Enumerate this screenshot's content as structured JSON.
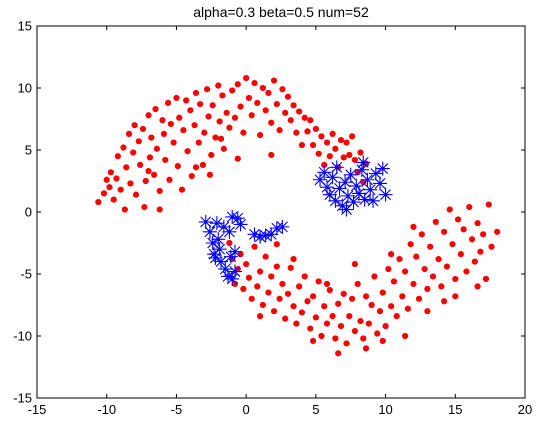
{
  "chart_data": {
    "type": "scatter",
    "title": "alpha=0.3 beta=0.5 num=52",
    "xlabel": "",
    "ylabel": "",
    "xlim": [
      -15,
      20
    ],
    "ylim": [
      -15,
      15
    ],
    "xticks": [
      "-15",
      "-10",
      "-5",
      "0",
      "5",
      "10",
      "15",
      "20"
    ],
    "yticks": [
      "15",
      "10",
      "5",
      "0",
      "-5",
      "-10",
      "-15"
    ],
    "grid": false,
    "series": [
      {
        "marker": "dot",
        "color": "#ff0000",
        "points": [
          [
            -10.6,
            0.8
          ],
          [
            -10.2,
            1.5
          ],
          [
            -10.0,
            2.6
          ],
          [
            -9.8,
            2.0
          ],
          [
            -9.7,
            3.2
          ],
          [
            -9.5,
            1.0
          ],
          [
            -9.3,
            2.7
          ],
          [
            -9.2,
            4.5
          ],
          [
            -9.0,
            1.8
          ],
          [
            -8.8,
            5.2
          ],
          [
            -8.7,
            0.2
          ],
          [
            -8.6,
            3.6
          ],
          [
            -8.4,
            6.3
          ],
          [
            -8.3,
            2.3
          ],
          [
            -8.1,
            4.8
          ],
          [
            -8.0,
            7.0
          ],
          [
            -7.9,
            1.4
          ],
          [
            -7.7,
            5.7
          ],
          [
            -7.6,
            3.8
          ],
          [
            -7.4,
            6.7
          ],
          [
            -7.3,
            0.4
          ],
          [
            -7.2,
            2.5
          ],
          [
            -7.0,
            7.8
          ],
          [
            -6.9,
            4.4
          ],
          [
            -6.8,
            6.0
          ],
          [
            -6.6,
            3.0
          ],
          [
            -6.5,
            8.3
          ],
          [
            -6.4,
            5.1
          ],
          [
            -6.2,
            1.7
          ],
          [
            -6.0,
            7.4
          ],
          [
            -5.9,
            6.3
          ],
          [
            -5.8,
            4.2
          ],
          [
            -5.6,
            8.8
          ],
          [
            -5.5,
            2.6
          ],
          [
            -5.4,
            7.1
          ],
          [
            -5.2,
            5.6
          ],
          [
            -5.0,
            9.2
          ],
          [
            -4.9,
            3.7
          ],
          [
            -4.8,
            7.6
          ],
          [
            -4.6,
            1.8
          ],
          [
            -4.5,
            6.6
          ],
          [
            -4.3,
            9.0
          ],
          [
            -4.2,
            4.9
          ],
          [
            -4.0,
            8.2
          ],
          [
            -3.9,
            2.9
          ],
          [
            -3.7,
            7.0
          ],
          [
            -3.6,
            9.6
          ],
          [
            -3.4,
            5.6
          ],
          [
            -3.3,
            8.7
          ],
          [
            -3.1,
            3.8
          ],
          [
            -3.0,
            6.4
          ],
          [
            -2.8,
            9.9
          ],
          [
            -2.7,
            7.7
          ],
          [
            -2.5,
            4.6
          ],
          [
            -2.4,
            8.6
          ],
          [
            -2.2,
            6.0
          ],
          [
            -2.0,
            10.2
          ],
          [
            -1.9,
            7.3
          ],
          [
            -1.7,
            9.4
          ],
          [
            -1.6,
            5.1
          ],
          [
            -1.4,
            8.0
          ],
          [
            -1.2,
            6.8
          ],
          [
            -1.0,
            9.8
          ],
          [
            -0.8,
            7.6
          ],
          [
            -0.6,
            10.3
          ],
          [
            -0.4,
            8.5
          ],
          [
            -0.2,
            6.4
          ],
          [
            0.0,
            10.8
          ],
          [
            0.2,
            9.2
          ],
          [
            0.4,
            7.8
          ],
          [
            0.6,
            10.4
          ],
          [
            0.8,
            8.8
          ],
          [
            1.0,
            6.2
          ],
          [
            1.2,
            10.0
          ],
          [
            1.4,
            8.2
          ],
          [
            1.6,
            9.6
          ],
          [
            1.8,
            7.2
          ],
          [
            2.0,
            10.6
          ],
          [
            2.2,
            8.7
          ],
          [
            2.4,
            6.6
          ],
          [
            2.6,
            9.9
          ],
          [
            2.8,
            8.0
          ],
          [
            3.0,
            9.3
          ],
          [
            3.2,
            7.4
          ],
          [
            3.4,
            8.6
          ],
          [
            3.6,
            6.4
          ],
          [
            3.8,
            8.1
          ],
          [
            4.0,
            5.4
          ],
          [
            4.2,
            7.6
          ],
          [
            4.4,
            6.5
          ],
          [
            4.6,
            7.4
          ],
          [
            4.8,
            5.4
          ],
          [
            5.0,
            6.7
          ],
          [
            5.2,
            4.7
          ],
          [
            5.4,
            6.1
          ],
          [
            5.6,
            3.8
          ],
          [
            5.8,
            5.6
          ],
          [
            6.0,
            4.5
          ],
          [
            6.2,
            6.3
          ],
          [
            6.4,
            5.1
          ],
          [
            6.6,
            3.6
          ],
          [
            6.8,
            5.8
          ],
          [
            7.0,
            4.4
          ],
          [
            7.2,
            5.6
          ],
          [
            7.4,
            4.6
          ],
          [
            7.6,
            6.1
          ],
          [
            7.8,
            4.2
          ],
          [
            8.0,
            3.2
          ],
          [
            8.2,
            4.8
          ],
          [
            8.4,
            2.4
          ],
          [
            8.6,
            3.9
          ],
          [
            1.8,
            4.6
          ],
          [
            -0.6,
            4.3
          ],
          [
            -3.6,
            3.6
          ],
          [
            -7.0,
            3.3
          ],
          [
            -6.2,
            0.2
          ],
          [
            -1.8,
            5.9
          ],
          [
            -2.6,
            3.0
          ],
          [
            -1.2,
            -2.5
          ],
          [
            -1.0,
            -3.8
          ],
          [
            -0.8,
            -5.8
          ],
          [
            -0.6,
            -4.6
          ],
          [
            -0.4,
            -3.4
          ],
          [
            -0.2,
            -6.2
          ],
          [
            0.0,
            -4.2
          ],
          [
            0.2,
            -5.3
          ],
          [
            0.4,
            -7.0
          ],
          [
            0.6,
            -2.8
          ],
          [
            0.8,
            -6.0
          ],
          [
            1.0,
            -4.8
          ],
          [
            1.2,
            -7.5
          ],
          [
            1.4,
            -3.6
          ],
          [
            1.6,
            -6.5
          ],
          [
            1.8,
            -5.2
          ],
          [
            2.0,
            -8.0
          ],
          [
            2.2,
            -4.4
          ],
          [
            2.4,
            -7.0
          ],
          [
            2.6,
            -5.8
          ],
          [
            2.8,
            -8.6
          ],
          [
            3.0,
            -6.6
          ],
          [
            3.2,
            -4.5
          ],
          [
            3.4,
            -7.6
          ],
          [
            3.6,
            -9.0
          ],
          [
            3.8,
            -6.0
          ],
          [
            4.0,
            -8.1
          ],
          [
            4.2,
            -5.2
          ],
          [
            4.4,
            -7.2
          ],
          [
            4.6,
            -9.4
          ],
          [
            4.8,
            -6.8
          ],
          [
            5.0,
            -8.5
          ],
          [
            5.2,
            -5.6
          ],
          [
            5.4,
            -10.0
          ],
          [
            5.6,
            -7.6
          ],
          [
            5.8,
            -9.0
          ],
          [
            6.0,
            -6.3
          ],
          [
            6.2,
            -8.4
          ],
          [
            6.4,
            -10.2
          ],
          [
            6.6,
            -7.4
          ],
          [
            6.8,
            -9.2
          ],
          [
            7.0,
            -6.6
          ],
          [
            7.2,
            -10.6
          ],
          [
            7.4,
            -8.4
          ],
          [
            7.6,
            -7.0
          ],
          [
            7.8,
            -9.6
          ],
          [
            8.0,
            -5.8
          ],
          [
            8.2,
            -8.8
          ],
          [
            8.4,
            -10.2
          ],
          [
            8.6,
            -6.8
          ],
          [
            8.8,
            -9.0
          ],
          [
            9.0,
            -7.5
          ],
          [
            9.2,
            -5.2
          ],
          [
            9.4,
            -9.8
          ],
          [
            9.6,
            -8.0
          ],
          [
            9.8,
            -6.5
          ],
          [
            10.0,
            -9.2
          ],
          [
            10.2,
            -4.6
          ],
          [
            10.4,
            -7.6
          ],
          [
            10.6,
            -5.6
          ],
          [
            10.8,
            -8.4
          ],
          [
            11.0,
            -3.8
          ],
          [
            11.2,
            -6.8
          ],
          [
            11.4,
            -4.8
          ],
          [
            11.6,
            -7.8
          ],
          [
            11.8,
            -2.6
          ],
          [
            12.0,
            -5.8
          ],
          [
            12.2,
            -3.6
          ],
          [
            12.4,
            -7.0
          ],
          [
            12.6,
            -1.8
          ],
          [
            12.8,
            -4.6
          ],
          [
            13.0,
            -6.2
          ],
          [
            13.2,
            -2.8
          ],
          [
            13.4,
            -5.2
          ],
          [
            13.6,
            -0.8
          ],
          [
            13.8,
            -3.8
          ],
          [
            14.0,
            -6.0
          ],
          [
            14.2,
            -1.6
          ],
          [
            14.4,
            -4.4
          ],
          [
            14.6,
            0.2
          ],
          [
            14.8,
            -2.6
          ],
          [
            15.0,
            -5.4
          ],
          [
            15.2,
            -0.6
          ],
          [
            15.4,
            -3.4
          ],
          [
            15.6,
            -1.4
          ],
          [
            15.8,
            -4.8
          ],
          [
            16.0,
            0.4
          ],
          [
            16.2,
            -2.2
          ],
          [
            16.4,
            -4.0
          ],
          [
            16.6,
            -0.9
          ],
          [
            16.8,
            -3.2
          ],
          [
            17.0,
            -1.8
          ],
          [
            17.2,
            -5.4
          ],
          [
            17.6,
            -2.8
          ],
          [
            18.0,
            -1.6
          ],
          [
            15.0,
            -6.8
          ],
          [
            5.8,
            -5.8
          ],
          [
            7.8,
            -4.2
          ],
          [
            3.4,
            -3.8
          ],
          [
            12.0,
            -1.2
          ],
          [
            10.4,
            -3.4
          ],
          [
            14.2,
            -7.2
          ],
          [
            4.8,
            -10.4
          ],
          [
            8.6,
            -11.0
          ],
          [
            6.6,
            -11.4
          ],
          [
            2.2,
            -2.6
          ],
          [
            1.0,
            -8.4
          ],
          [
            13.0,
            -8.0
          ],
          [
            16.6,
            -6.0
          ],
          [
            9.8,
            -10.4
          ],
          [
            11.4,
            -10.0
          ],
          [
            17.4,
            0.6
          ]
        ]
      },
      {
        "marker": "star",
        "color": "#0000ff",
        "points": [
          [
            5.3,
            2.6
          ],
          [
            5.6,
            3.2
          ],
          [
            5.8,
            2.0
          ],
          [
            6.0,
            1.4
          ],
          [
            6.2,
            2.8
          ],
          [
            6.4,
            0.9
          ],
          [
            6.5,
            3.6
          ],
          [
            6.7,
            1.9
          ],
          [
            6.9,
            0.5
          ],
          [
            7.1,
            2.4
          ],
          [
            7.3,
            1.3
          ],
          [
            7.5,
            3.0
          ],
          [
            7.7,
            0.8
          ],
          [
            7.9,
            2.1
          ],
          [
            8.1,
            1.5
          ],
          [
            8.3,
            3.4
          ],
          [
            8.5,
            1.0
          ],
          [
            8.7,
            2.6
          ],
          [
            8.9,
            1.8
          ],
          [
            9.1,
            0.9
          ],
          [
            9.3,
            3.1
          ],
          [
            9.6,
            2.3
          ],
          [
            9.8,
            3.5
          ],
          [
            10.0,
            1.4
          ],
          [
            8.4,
            4.0
          ],
          [
            7.2,
            0.2
          ],
          [
            -2.9,
            -0.8
          ],
          [
            -2.6,
            -1.6
          ],
          [
            -2.4,
            -2.5
          ],
          [
            -2.3,
            -3.4
          ],
          [
            -2.1,
            -0.9
          ],
          [
            -2.0,
            -2.2
          ],
          [
            -1.9,
            -3.0
          ],
          [
            -1.8,
            -4.0
          ],
          [
            -1.6,
            -1.2
          ],
          [
            -1.5,
            -4.6
          ],
          [
            -1.3,
            -5.2
          ],
          [
            -1.2,
            -1.6
          ],
          [
            -1.1,
            -3.6
          ],
          [
            -1.0,
            -0.4
          ],
          [
            -0.8,
            -4.8
          ],
          [
            -0.6,
            -0.5
          ],
          [
            -0.4,
            -1.0
          ],
          [
            0.6,
            -1.8
          ],
          [
            1.0,
            -2.0
          ],
          [
            1.4,
            -1.9
          ],
          [
            1.8,
            -1.8
          ],
          [
            2.2,
            -1.3
          ],
          [
            2.6,
            -1.2
          ],
          [
            -2.2,
            -3.7
          ],
          [
            -1.0,
            -5.4
          ],
          [
            -0.8,
            -3.2
          ]
        ]
      }
    ]
  }
}
